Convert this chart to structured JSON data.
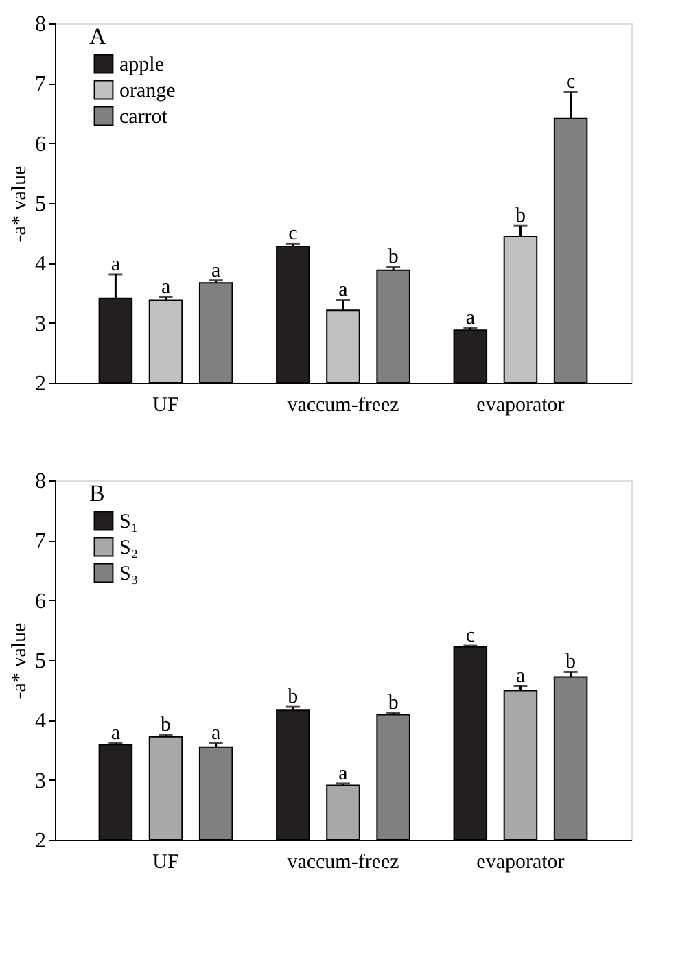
{
  "chart_data": [
    {
      "type": "bar",
      "title": "A",
      "ylabel": "-a* value",
      "categories": [
        "UF",
        "vaccum-freez",
        "evaporator"
      ],
      "ylim": [
        2,
        8
      ],
      "yticks": [
        2,
        3,
        4,
        5,
        6,
        7,
        8
      ],
      "grid": false,
      "legend": "top left",
      "series": [
        {
          "name": "apple",
          "color": "#231f20",
          "values": [
            3.41,
            4.28,
            2.88
          ],
          "errors": [
            0.4,
            0.04,
            0.04
          ],
          "value_labels": [
            "a",
            "c",
            "a"
          ]
        },
        {
          "name": "orange",
          "color": "#c0c0c0",
          "values": [
            3.38,
            3.21,
            4.44
          ],
          "errors": [
            0.05,
            0.17,
            0.18
          ],
          "value_labels": [
            "a",
            "a",
            "b"
          ]
        },
        {
          "name": "carrot",
          "color": "#808080",
          "values": [
            3.67,
            3.88,
            6.41
          ],
          "errors": [
            0.04,
            0.05,
            0.45
          ],
          "value_labels": [
            "a",
            "b",
            "c"
          ]
        }
      ]
    },
    {
      "type": "bar",
      "title": "B",
      "ylabel": "-a* value",
      "categories": [
        "UF",
        "vaccum-freez",
        "evaporator"
      ],
      "ylim": [
        2,
        8
      ],
      "yticks": [
        2,
        3,
        4,
        5,
        6,
        7,
        8
      ],
      "grid": false,
      "legend": "top left",
      "series": [
        {
          "name": "S₁",
          "color": "#231f20",
          "values": [
            3.59,
            4.16,
            5.22
          ],
          "errors": [
            0.02,
            0.06,
            0.02
          ],
          "value_labels": [
            "a",
            "b",
            "c"
          ]
        },
        {
          "name": "S₂",
          "color": "#a8a8a8",
          "values": [
            3.72,
            2.91,
            4.49
          ],
          "errors": [
            0.03,
            0.03,
            0.08
          ],
          "value_labels": [
            "b",
            "a",
            "a"
          ]
        },
        {
          "name": "S₃",
          "color": "#808080",
          "values": [
            3.55,
            4.09,
            4.72
          ],
          "errors": [
            0.06,
            0.03,
            0.08
          ],
          "value_labels": [
            "a",
            "b",
            "b"
          ]
        }
      ]
    }
  ]
}
